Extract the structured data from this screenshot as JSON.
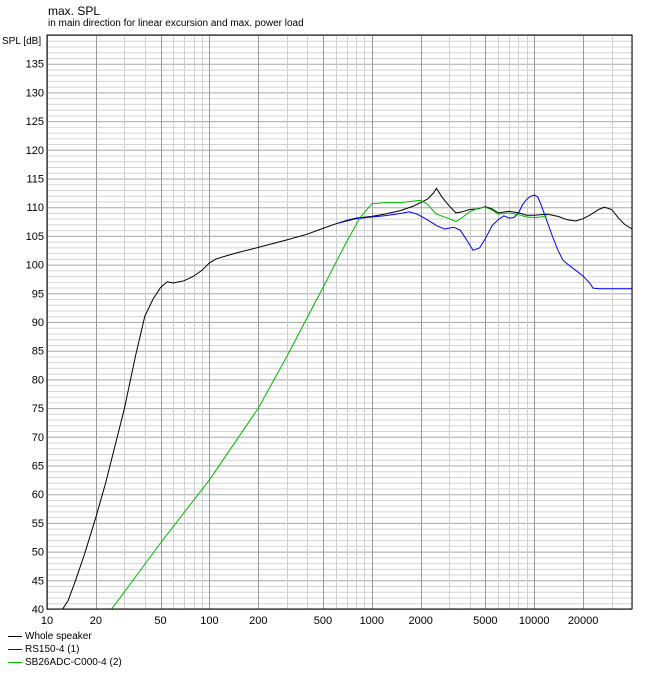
{
  "chart_data": {
    "type": "line",
    "title": "max. SPL",
    "subtitle": "in main direction for linear excursion and max. power load",
    "ylabel": "SPL [dB]",
    "xscale": "log",
    "xlim": [
      10,
      40000
    ],
    "ylim": [
      40,
      140
    ],
    "grid": true,
    "x_ticks": [
      10,
      20,
      50,
      100,
      200,
      500,
      1000,
      2000,
      5000,
      10000,
      20000
    ],
    "x_tick_labels": [
      "10",
      "20",
      "50",
      "100",
      "200",
      "500",
      "1000",
      "2000",
      "5000",
      "10000",
      "20000"
    ],
    "y_ticks": [
      40,
      45,
      50,
      55,
      60,
      65,
      70,
      75,
      80,
      85,
      90,
      95,
      100,
      105,
      110,
      115,
      120,
      125,
      130,
      135
    ],
    "y_tick_labels": [
      "40",
      "45",
      "50",
      "55",
      "60",
      "65",
      "70",
      "75",
      "80",
      "85",
      "90",
      "95",
      "100",
      "105",
      "110",
      "115",
      "120",
      "125",
      "130",
      "135"
    ],
    "legend_position": "bottom-left",
    "series": [
      {
        "name": "Whole speaker",
        "color": "#000000",
        "points": [
          [
            12.5,
            40
          ],
          [
            13.5,
            41.5
          ],
          [
            15,
            45
          ],
          [
            17,
            49.5
          ],
          [
            20,
            56
          ],
          [
            23,
            62
          ],
          [
            26,
            68
          ],
          [
            30,
            75
          ],
          [
            35,
            84
          ],
          [
            40,
            91
          ],
          [
            45,
            94
          ],
          [
            50,
            96
          ],
          [
            55,
            97
          ],
          [
            60,
            96.8
          ],
          [
            70,
            97.2
          ],
          [
            80,
            98
          ],
          [
            90,
            99
          ],
          [
            100,
            100.3
          ],
          [
            110,
            101
          ],
          [
            130,
            101.6
          ],
          [
            150,
            102.1
          ],
          [
            200,
            103
          ],
          [
            300,
            104.3
          ],
          [
            400,
            105.3
          ],
          [
            500,
            106.3
          ],
          [
            600,
            107.1
          ],
          [
            700,
            107.7
          ],
          [
            800,
            108.1
          ],
          [
            1000,
            108.4
          ],
          [
            1200,
            108.8
          ],
          [
            1500,
            109.4
          ],
          [
            1800,
            110.2
          ],
          [
            2000,
            110.8
          ],
          [
            2200,
            111.4
          ],
          [
            2400,
            112.5
          ],
          [
            2500,
            113.3
          ],
          [
            2700,
            111.8
          ],
          [
            3000,
            110.2
          ],
          [
            3300,
            109
          ],
          [
            3600,
            109.2
          ],
          [
            4000,
            109.6
          ],
          [
            4500,
            109.7
          ],
          [
            5000,
            110.1
          ],
          [
            5500,
            109.7
          ],
          [
            6000,
            109
          ],
          [
            7000,
            109.3
          ],
          [
            8000,
            109
          ],
          [
            9000,
            108.6
          ],
          [
            10000,
            108.6
          ],
          [
            12000,
            108.8
          ],
          [
            14000,
            108.4
          ],
          [
            16000,
            107.8
          ],
          [
            18000,
            107.6
          ],
          [
            20000,
            108
          ],
          [
            22000,
            108.6
          ],
          [
            25000,
            109.6
          ],
          [
            27000,
            110
          ],
          [
            30000,
            109.6
          ],
          [
            33000,
            108.1
          ],
          [
            36000,
            107
          ],
          [
            40000,
            106.2
          ]
        ]
      },
      {
        "name": "RS150-4 (1)",
        "color": "#0000ff",
        "points": [
          [
            600,
            107.1
          ],
          [
            800,
            108
          ],
          [
            1000,
            108.3
          ],
          [
            1200,
            108.5
          ],
          [
            1500,
            108.9
          ],
          [
            1700,
            109.2
          ],
          [
            1900,
            108.8
          ],
          [
            2200,
            107.8
          ],
          [
            2500,
            106.8
          ],
          [
            2800,
            106.2
          ],
          [
            3200,
            106.5
          ],
          [
            3500,
            106
          ],
          [
            3800,
            104.5
          ],
          [
            4200,
            102.5
          ],
          [
            4600,
            102.9
          ],
          [
            5000,
            104.5
          ],
          [
            5500,
            106.8
          ],
          [
            6000,
            107.8
          ],
          [
            6500,
            108.5
          ],
          [
            7000,
            108.1
          ],
          [
            7500,
            108.2
          ],
          [
            8000,
            109
          ],
          [
            8500,
            110.5
          ],
          [
            9000,
            111.4
          ],
          [
            9500,
            111.9
          ],
          [
            10000,
            112.1
          ],
          [
            10500,
            111.8
          ],
          [
            11000,
            110.5
          ],
          [
            12000,
            107.5
          ],
          [
            13000,
            104.8
          ],
          [
            14000,
            102.5
          ],
          [
            15000,
            100.8
          ],
          [
            16000,
            100.1
          ],
          [
            18000,
            99
          ],
          [
            20000,
            98
          ],
          [
            22000,
            96.8
          ],
          [
            23000,
            95.9
          ],
          [
            25000,
            95.8
          ],
          [
            30000,
            95.8
          ],
          [
            40000,
            95.8
          ]
        ]
      },
      {
        "name": "SB26ADC-C000-4 (2)",
        "color": "#00bb00",
        "points": [
          [
            12.5,
            40
          ],
          [
            20,
            40
          ],
          [
            25,
            40
          ],
          [
            30,
            43
          ],
          [
            50,
            51.5
          ],
          [
            100,
            62.5
          ],
          [
            200,
            75
          ],
          [
            300,
            84
          ],
          [
            500,
            96
          ],
          [
            700,
            104
          ],
          [
            850,
            108.3
          ],
          [
            1000,
            110.6
          ],
          [
            1200,
            110.8
          ],
          [
            1500,
            110.8
          ],
          [
            2000,
            111.2
          ],
          [
            2200,
            110.5
          ],
          [
            2500,
            108.8
          ],
          [
            3000,
            108
          ],
          [
            3300,
            107.5
          ],
          [
            3600,
            108.2
          ],
          [
            4000,
            109.2
          ],
          [
            4500,
            109.8
          ],
          [
            5000,
            110
          ],
          [
            5500,
            109.5
          ],
          [
            6000,
            108.8
          ],
          [
            7000,
            109
          ],
          [
            8000,
            108.7
          ],
          [
            9000,
            108.3
          ],
          [
            10000,
            108.2
          ],
          [
            11000,
            108.3
          ],
          [
            12000,
            108.5
          ]
        ]
      }
    ]
  }
}
